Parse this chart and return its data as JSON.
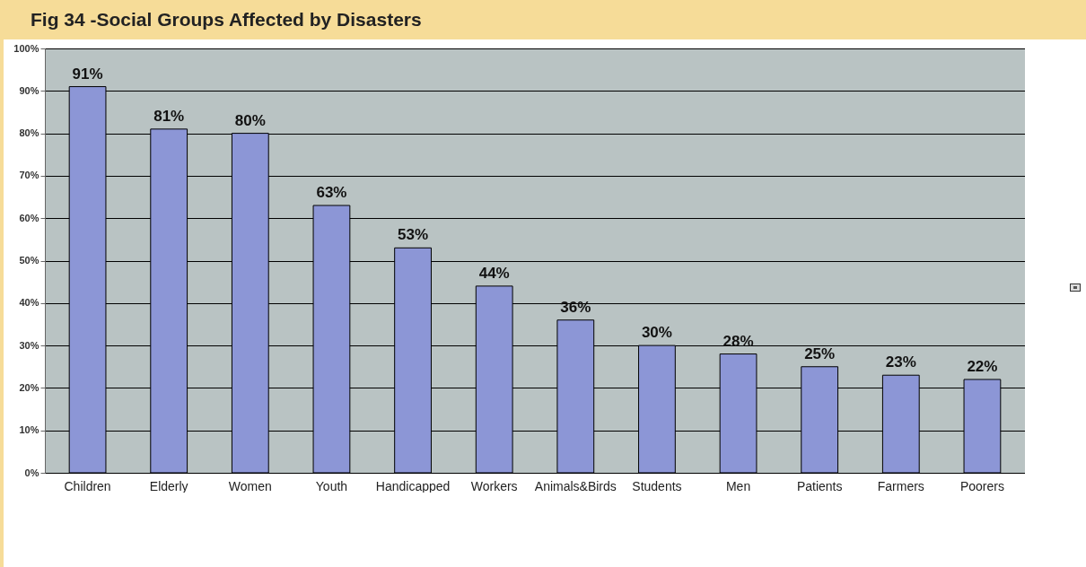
{
  "chart_data": {
    "type": "bar",
    "title": "Fig 34 -Social Groups Affected by Disasters",
    "categories": [
      "Children",
      "Elderly",
      "Women",
      "Youth",
      "Handicapped",
      "Workers",
      "Animals&Birds",
      "Students",
      "Men",
      "Patients",
      "Farmers",
      "Poorers"
    ],
    "values": [
      91,
      81,
      80,
      63,
      53,
      44,
      36,
      30,
      28,
      25,
      23,
      22
    ],
    "value_labels": [
      "91%",
      "81%",
      "80%",
      "63%",
      "53%",
      "44%",
      "36%",
      "30%",
      "28%",
      "25%",
      "23%",
      "22%"
    ],
    "color": "#8c96d6",
    "ylim": [
      0,
      100
    ],
    "yticks": [
      {
        "value": 0,
        "label": "0%"
      },
      {
        "value": 10,
        "label": "10%"
      },
      {
        "value": 20,
        "label": "20%"
      },
      {
        "value": 30,
        "label": "30%"
      },
      {
        "value": 40,
        "label": "40%"
      },
      {
        "value": 50,
        "label": "50%"
      },
      {
        "value": 60,
        "label": "60%"
      },
      {
        "value": 70,
        "label": "70%"
      },
      {
        "value": 80,
        "label": "80%"
      },
      {
        "value": 90,
        "label": "90%"
      },
      {
        "value": 100,
        "label": "100%"
      }
    ],
    "grid": "y"
  }
}
